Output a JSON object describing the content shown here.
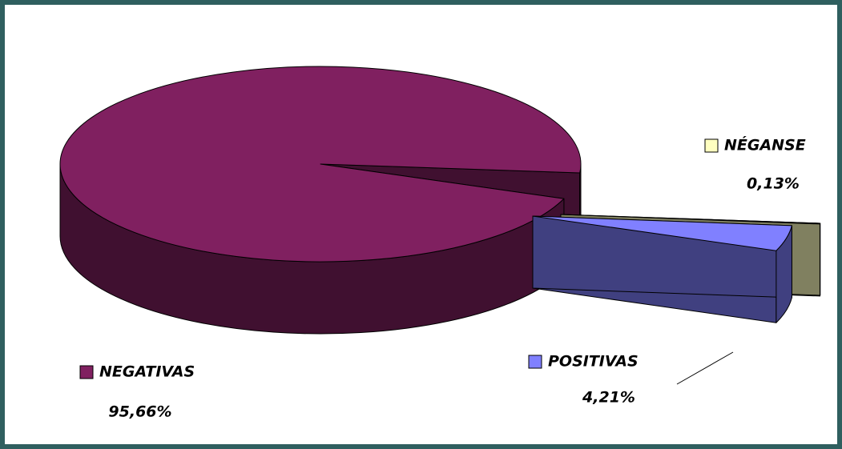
{
  "chart_data": {
    "type": "pie3d",
    "categories": [
      "NEGATIVAS",
      "POSITIVAS",
      "NÉGANSE"
    ],
    "values": [
      95.66,
      4.21,
      0.13
    ],
    "value_labels": [
      "95,66%",
      "4,21%",
      "0,13%"
    ],
    "colors": [
      "#802060",
      "#8080ff",
      "#ffffc0"
    ]
  }
}
